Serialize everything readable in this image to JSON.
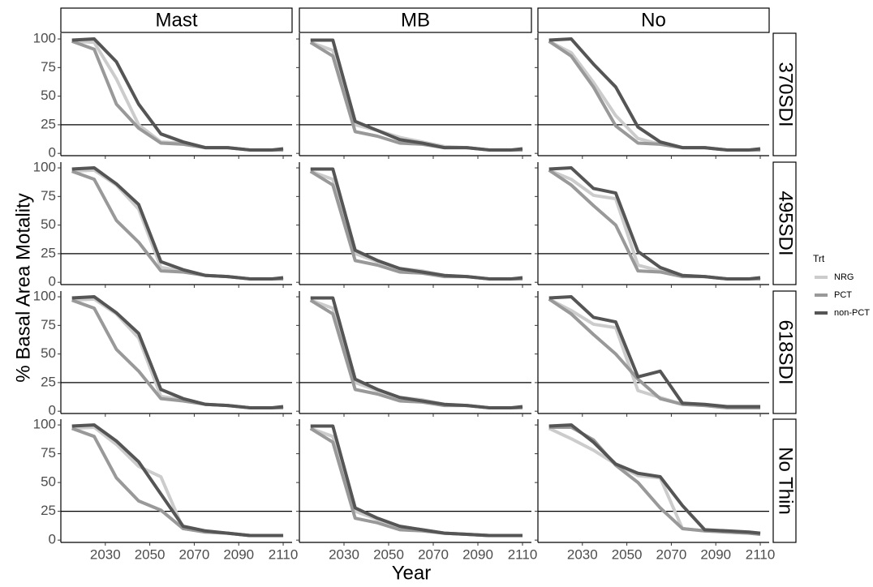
{
  "chart_data": {
    "type": "line",
    "y_label": "% Basal Area Motality",
    "x_label": "Year",
    "columns": [
      "Mast",
      "MB",
      "No"
    ],
    "rows": [
      "370SDI",
      "495SDI",
      "618SDI",
      "No Thin"
    ],
    "x": [
      2015,
      2025,
      2035,
      2045,
      2055,
      2065,
      2075,
      2085,
      2095,
      2105,
      2110
    ],
    "xlim": [
      2010,
      2114
    ],
    "xticks": [
      2030,
      2050,
      2070,
      2090,
      2110
    ],
    "ylim": [
      -2,
      105
    ],
    "yticks": [
      0,
      25,
      50,
      75,
      100
    ],
    "hline": 25,
    "legend": {
      "title": "Trt",
      "position": "right",
      "series": [
        {
          "name": "NRG",
          "color": "#cccccc"
        },
        {
          "name": "PCT",
          "color": "#999999"
        },
        {
          "name": "non-PCT",
          "color": "#555555"
        }
      ]
    },
    "panels": [
      {
        "row": 0,
        "column": 0,
        "lines": [
          [
            98,
            97,
            65,
            25,
            10,
            9,
            5,
            5,
            3,
            3,
            3
          ],
          [
            98,
            91,
            43,
            22,
            9,
            8,
            5,
            5,
            3,
            3,
            3
          ],
          [
            99,
            100,
            80,
            43,
            17,
            10,
            5,
            5,
            3,
            3,
            4
          ]
        ]
      },
      {
        "row": 0,
        "column": 1,
        "lines": [
          [
            97,
            90,
            25,
            20,
            14,
            10,
            6,
            5,
            3,
            3,
            3
          ],
          [
            97,
            85,
            19,
            15,
            9,
            8,
            5,
            5,
            3,
            3,
            3
          ],
          [
            99,
            99,
            28,
            20,
            12,
            9,
            5,
            5,
            3,
            3,
            4
          ]
        ]
      },
      {
        "row": 0,
        "column": 2,
        "lines": [
          [
            98,
            88,
            62,
            33,
            13,
            8,
            5,
            5,
            3,
            3,
            3
          ],
          [
            98,
            85,
            58,
            24,
            9,
            8,
            5,
            5,
            3,
            3,
            3
          ],
          [
            99,
            100,
            78,
            58,
            23,
            10,
            5,
            5,
            3,
            3,
            4
          ]
        ]
      },
      {
        "row": 1,
        "column": 0,
        "lines": [
          [
            97,
            98,
            85,
            64,
            13,
            10,
            6,
            5,
            3,
            3,
            3
          ],
          [
            97,
            90,
            54,
            35,
            10,
            9,
            6,
            5,
            3,
            3,
            3
          ],
          [
            99,
            100,
            86,
            68,
            18,
            11,
            6,
            5,
            3,
            3,
            4
          ]
        ]
      },
      {
        "row": 1,
        "column": 1,
        "lines": [
          [
            97,
            90,
            25,
            18,
            12,
            10,
            6,
            5,
            3,
            3,
            3
          ],
          [
            97,
            85,
            19,
            15,
            9,
            8,
            5,
            5,
            3,
            3,
            3
          ],
          [
            99,
            99,
            28,
            19,
            12,
            9,
            6,
            5,
            3,
            3,
            4
          ]
        ]
      },
      {
        "row": 1,
        "column": 2,
        "lines": [
          [
            98,
            90,
            76,
            73,
            15,
            10,
            6,
            5,
            3,
            3,
            3
          ],
          [
            98,
            85,
            67,
            50,
            10,
            9,
            5,
            5,
            3,
            3,
            3
          ],
          [
            99,
            100,
            82,
            78,
            27,
            13,
            6,
            5,
            3,
            3,
            4
          ]
        ]
      },
      {
        "row": 2,
        "column": 0,
        "lines": [
          [
            97,
            98,
            85,
            64,
            13,
            10,
            6,
            5,
            3,
            3,
            3
          ],
          [
            97,
            90,
            54,
            35,
            11,
            9,
            6,
            5,
            3,
            3,
            3
          ],
          [
            99,
            100,
            86,
            68,
            19,
            11,
            6,
            5,
            3,
            3,
            4
          ]
        ]
      },
      {
        "row": 2,
        "column": 1,
        "lines": [
          [
            97,
            90,
            25,
            18,
            12,
            10,
            6,
            5,
            3,
            3,
            3
          ],
          [
            97,
            85,
            19,
            15,
            9,
            8,
            5,
            5,
            3,
            3,
            3
          ],
          [
            99,
            99,
            28,
            19,
            12,
            9,
            6,
            5,
            3,
            3,
            4
          ]
        ]
      },
      {
        "row": 2,
        "column": 2,
        "lines": [
          [
            98,
            88,
            76,
            73,
            18,
            12,
            6,
            5,
            3,
            3,
            3
          ],
          [
            98,
            85,
            67,
            50,
            28,
            11,
            6,
            5,
            3,
            3,
            3
          ],
          [
            99,
            100,
            82,
            78,
            30,
            35,
            7,
            6,
            4,
            4,
            4
          ]
        ]
      },
      {
        "row": 3,
        "column": 0,
        "lines": [
          [
            97,
            98,
            83,
            64,
            55,
            10,
            7,
            6,
            4,
            4,
            4
          ],
          [
            97,
            90,
            54,
            34,
            26,
            10,
            7,
            6,
            4,
            4,
            4
          ],
          [
            99,
            100,
            86,
            68,
            40,
            12,
            8,
            6,
            4,
            4,
            4
          ]
        ]
      },
      {
        "row": 3,
        "column": 1,
        "lines": [
          [
            97,
            90,
            25,
            18,
            12,
            9,
            6,
            5,
            4,
            4,
            4
          ],
          [
            97,
            85,
            19,
            15,
            9,
            8,
            6,
            5,
            4,
            4,
            4
          ],
          [
            99,
            99,
            28,
            19,
            12,
            9,
            6,
            5,
            4,
            4,
            4
          ]
        ]
      },
      {
        "row": 3,
        "column": 2,
        "lines": [
          [
            97,
            88,
            78,
            66,
            56,
            54,
            10,
            8,
            7,
            6,
            5
          ],
          [
            98,
            98,
            87,
            65,
            50,
            28,
            10,
            8,
            7,
            6,
            5
          ],
          [
            99,
            100,
            85,
            66,
            58,
            55,
            30,
            9,
            8,
            7,
            6
          ]
        ]
      }
    ]
  }
}
